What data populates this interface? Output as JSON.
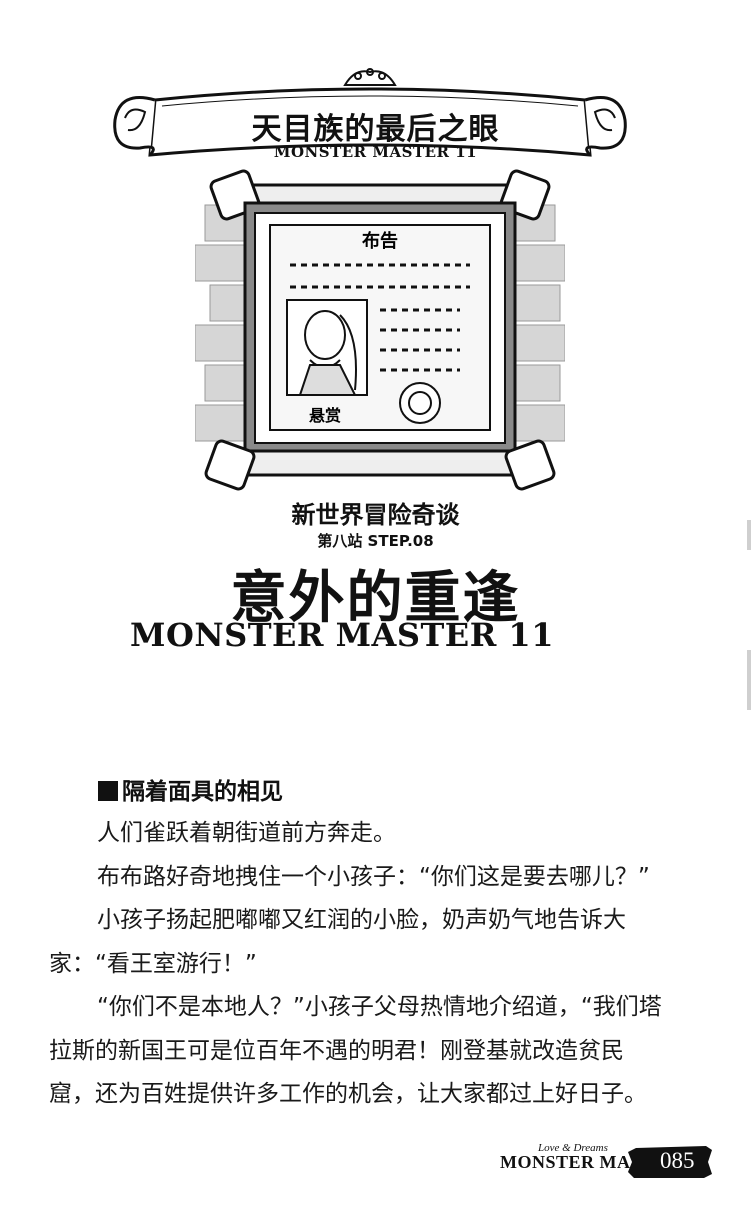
{
  "banner": {
    "title": "天目族的最后之眼",
    "subtitle": "MONSTER MASTER 11"
  },
  "illustration": {
    "poster_header": "布告",
    "poster_stamp": "悬赏"
  },
  "chapter": {
    "series": "新世界冒险奇谈",
    "step": "第八站 STEP.08",
    "title": "意外的重逢",
    "brand": "MONSTER MASTER 11"
  },
  "section": {
    "heading": "隔着面具的相见"
  },
  "paragraphs": [
    "人们雀跃着朝街道前方奔走。",
    "布布路好奇地拽住一个小孩子：“你们这是要去哪儿？”",
    "小孩子扬起肥嘟嘟又红润的小脸，奶声奶气地告诉大家：“看王室游行！”",
    "“你们不是本地人？”小孩子父母热情地介绍道，“我们塔拉斯的新国王可是位百年不遇的明君！刚登基就改造贫民窟，还为百姓提供许多工作的机会，让大家都过上好日子。"
  ],
  "footer": {
    "tagline": "Love & Dreams",
    "brand": "MONSTER MASTER",
    "page_number": "085"
  }
}
